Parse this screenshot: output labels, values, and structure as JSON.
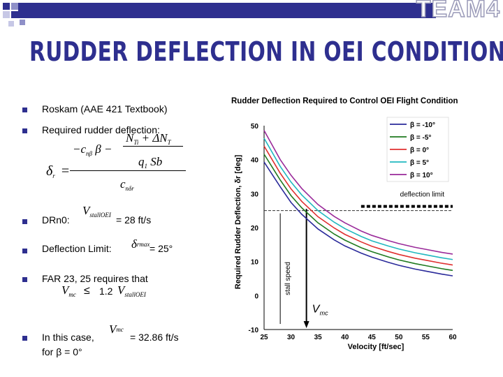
{
  "header": {
    "logo_text": "TEAM4",
    "title": "RUDDER DEFLECTION IN OEI CONDITIONS",
    "brand_color": "#2e2f8f"
  },
  "bullets": {
    "b1": "Roskam (AAE 421 Textbook)",
    "b2": "Required rudder deflection:",
    "b3_prefix": "DRn0:",
    "b3_value": "= 28 ft/s",
    "b4_prefix": "Deflection Limit:",
    "b4_value": "= 25°",
    "b5_text": "FAR 23, 25 requires that",
    "b5_le": "≤",
    "b5_factor": "1.2",
    "b6_line1": "In this case,",
    "b6_value": "= 32.86 ft/s",
    "b6_line2": "for β = 0°"
  },
  "formulas": {
    "num_a": "−c",
    "num_a_sub": "nβ",
    "num_b": "β −",
    "num_c": "N",
    "num_c_sub": "Ti",
    "num_d": "+ ΔN",
    "num_d_sub": "T",
    "num_e": "q",
    "num_e_sub": "1",
    "num_f": "Sb",
    "lhs": "δ",
    "lhs_sub": "r",
    "eq": "=",
    "den": "c",
    "den_sub": "nδr",
    "vstall": "V",
    "vstall_sub": "stallOEI",
    "dmax": "δ",
    "dmax_sub": "rmax",
    "vmc": "V",
    "vmc_sub": "mc"
  },
  "chart_data": {
    "type": "line",
    "title": "Rudder Deflection Required to Control OEI Flight Condition",
    "xlabel": "Velocity [ft/sec]",
    "ylabel": "Required Rudder Deflection,  δr [deg]",
    "xlim": [
      25,
      60
    ],
    "ylim": [
      -10,
      50
    ],
    "xticks": [
      "25",
      "30",
      "35",
      "40",
      "45",
      "50",
      "55",
      "60"
    ],
    "yticks": [
      "-10",
      "0",
      "10",
      "20",
      "30",
      "40",
      "50"
    ],
    "x": [
      25,
      28,
      30,
      32,
      35,
      38,
      40,
      43,
      45,
      48,
      50,
      53,
      55,
      58,
      60
    ],
    "series": [
      {
        "name": "β = -10°",
        "color": "#2a2a9a",
        "values": [
          39.3,
          32.0,
          27.4,
          23.9,
          19.6,
          16.4,
          14.6,
          12.5,
          11.3,
          9.8,
          8.9,
          7.8,
          7.2,
          6.3,
          5.8
        ]
      },
      {
        "name": "β = -5°",
        "color": "#1f7a1f",
        "values": [
          41.6,
          34.0,
          29.4,
          25.8,
          21.4,
          18.1,
          16.3,
          14.1,
          12.9,
          11.4,
          10.5,
          9.4,
          8.8,
          7.9,
          7.4
        ]
      },
      {
        "name": "β = 0°",
        "color": "#e03030",
        "values": [
          44.0,
          36.0,
          31.4,
          27.7,
          23.2,
          19.9,
          18.0,
          15.8,
          14.5,
          13.0,
          12.1,
          11.0,
          10.4,
          9.5,
          9.0
        ]
      },
      {
        "name": "β = 5°",
        "color": "#20b8c0",
        "values": [
          46.3,
          38.0,
          33.4,
          29.6,
          25.0,
          21.6,
          19.7,
          17.4,
          16.1,
          14.6,
          13.7,
          12.6,
          12.0,
          11.1,
          10.6
        ]
      },
      {
        "name": "β = 10°",
        "color": "#9a2a9a",
        "values": [
          48.6,
          40.0,
          35.4,
          31.5,
          26.8,
          23.3,
          21.4,
          19.0,
          17.7,
          16.2,
          15.3,
          14.2,
          13.6,
          12.7,
          12.2
        ]
      }
    ],
    "annotations": {
      "deflection_limit_label": "deflection limit",
      "deflection_limit_value": 25,
      "stall_speed_label": "stall speed",
      "stall_speed_value": 28,
      "vmc_label": "V",
      "vmc_sub": "mc",
      "vmc_value": 32.86
    },
    "legend_position": "top-right"
  }
}
